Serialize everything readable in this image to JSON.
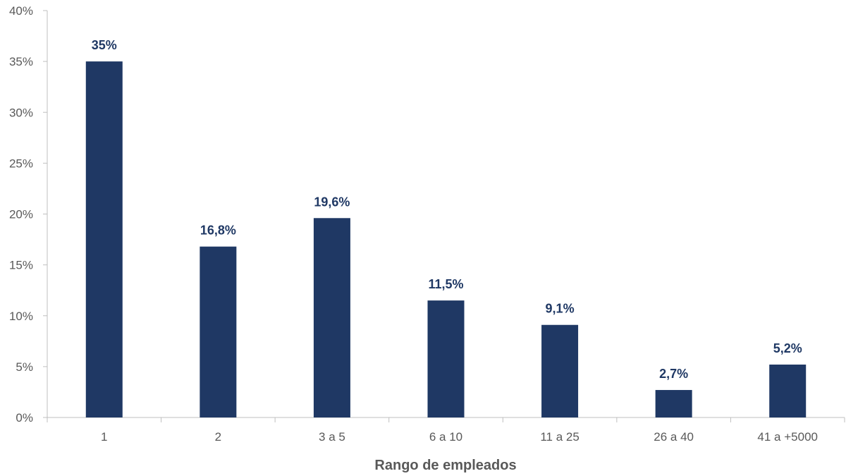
{
  "chart_data": {
    "type": "bar",
    "xlabel": "Rango de empleados",
    "ylabel": "",
    "categories": [
      "1",
      "2",
      "3 a 5",
      "6 a 10",
      "11 a 25",
      "26 a 40",
      "41 a +5000"
    ],
    "values": [
      35,
      16.8,
      19.6,
      11.5,
      9.1,
      2.7,
      5.2
    ],
    "data_labels": [
      "35%",
      "16,8%",
      "19,6%",
      "11,5%",
      "9,1%",
      "2,7%",
      "5,2%"
    ],
    "ylim": [
      0,
      40
    ],
    "yticks": [
      0,
      5,
      10,
      15,
      20,
      25,
      30,
      35,
      40
    ],
    "ytick_labels": [
      "0%",
      "5%",
      "10%",
      "15%",
      "20%",
      "25%",
      "30%",
      "35%",
      "40%"
    ],
    "grid": false,
    "legend": "none",
    "bar_color": "#1f3864"
  }
}
